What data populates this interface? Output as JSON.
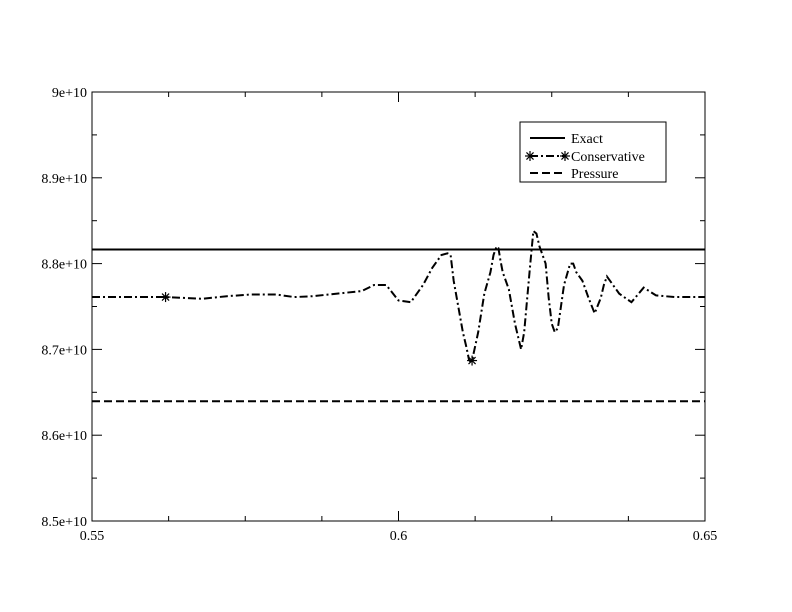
{
  "chart_data": {
    "type": "line",
    "xlim": [
      0.55,
      0.65
    ],
    "ylim": [
      85000000000.0,
      90000000000.0
    ],
    "x_ticks": [
      "0.55",
      "0.6",
      "0.65"
    ],
    "y_ticks": [
      "8.5e+10",
      "8.6e+10",
      "8.7e+10",
      "8.8e+10",
      "8.9e+10",
      "9e+10"
    ],
    "x_tick_values": [
      0.55,
      0.6,
      0.65
    ],
    "y_tick_values": [
      85000000000.0,
      86000000000.0,
      87000000000.0,
      88000000000.0,
      89000000000.0,
      90000000000.0
    ],
    "x_minor_step": 0.0125,
    "y_minor_step": 500000000.0,
    "grid": false,
    "legend_position": "top-right",
    "series": [
      {
        "name": "Exact",
        "style": "solid",
        "marker": "none",
        "x": [
          0.55,
          0.65
        ],
        "y": [
          88165000000.0,
          88165000000.0
        ]
      },
      {
        "name": "Conservative",
        "style": "dash-dot",
        "marker": "asterisk",
        "marker_indices": [
          3,
          30
        ],
        "x": [
          0.55,
          0.553,
          0.557,
          0.562,
          0.565,
          0.568,
          0.572,
          0.576,
          0.58,
          0.583,
          0.586,
          0.59,
          0.594,
          0.596,
          0.598,
          0.6,
          0.602,
          0.604,
          0.6055,
          0.607,
          0.608,
          0.6085,
          0.609,
          0.6095,
          0.61,
          0.6105,
          0.611,
          0.6113,
          0.6115,
          0.6117,
          0.612,
          0.613,
          0.614,
          0.615,
          0.6155,
          0.616,
          0.6163,
          0.6166,
          0.617,
          0.618,
          0.619,
          0.62,
          0.6205,
          0.621,
          0.6215,
          0.622,
          0.6225,
          0.623,
          0.624,
          0.6245,
          0.625,
          0.6255,
          0.626,
          0.627,
          0.628,
          0.6285,
          0.629,
          0.63,
          0.631,
          0.632,
          0.633,
          0.6335,
          0.634,
          0.636,
          0.638,
          0.64,
          0.642,
          0.645,
          0.65
        ],
        "y": [
          87610000000.0,
          87610000000.0,
          87610000000.0,
          87610000000.0,
          87600000000.0,
          87590000000.0,
          87620000000.0,
          87640000000.0,
          87640000000.0,
          87610000000.0,
          87620000000.0,
          87650000000.0,
          87680000000.0,
          87750000000.0,
          87750000000.0,
          87570000000.0,
          87550000000.0,
          87750000000.0,
          87950000000.0,
          88100000000.0,
          88120000000.0,
          88100000000.0,
          87800000000.0,
          87600000000.0,
          87400000000.0,
          87200000000.0,
          87050000000.0,
          86950000000.0,
          86880000000.0,
          86860000000.0,
          86870000000.0,
          87200000000.0,
          87650000000.0,
          87900000000.0,
          88100000000.0,
          88200000000.0,
          88180000000.0,
          88050000000.0,
          87900000000.0,
          87700000000.0,
          87300000000.0,
          87000000000.0,
          87200000000.0,
          87600000000.0,
          88000000000.0,
          88380000000.0,
          88350000000.0,
          88200000000.0,
          88000000000.0,
          87600000000.0,
          87300000000.0,
          87200000000.0,
          87250000000.0,
          87750000000.0,
          88000000000.0,
          88000000000.0,
          87900000000.0,
          87800000000.0,
          87600000000.0,
          87420000000.0,
          87600000000.0,
          87750000000.0,
          87850000000.0,
          87650000000.0,
          87550000000.0,
          87720000000.0,
          87630000000.0,
          87610000000.0,
          87610000000.0
        ]
      },
      {
        "name": "Pressure",
        "style": "dashed",
        "marker": "none",
        "x": [
          0.55,
          0.65
        ],
        "y": [
          86395000000.0,
          86395000000.0
        ]
      }
    ]
  }
}
